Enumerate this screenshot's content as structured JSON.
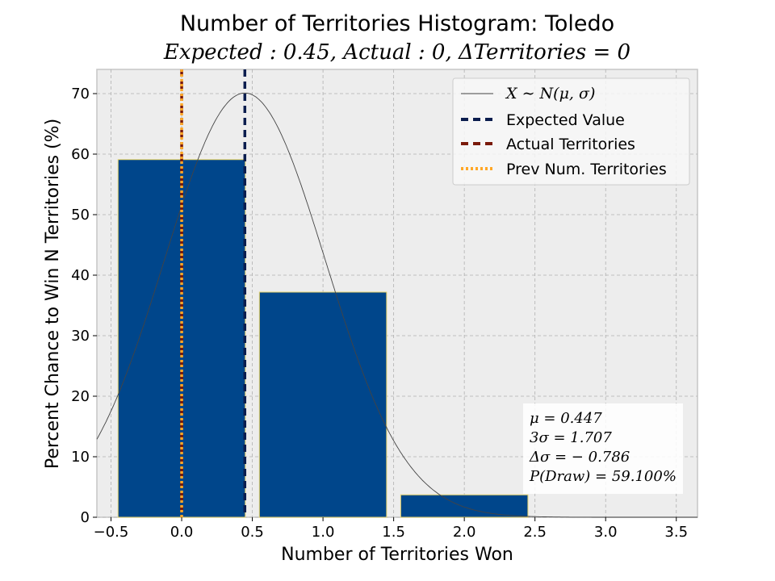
{
  "chart_data": {
    "type": "bar",
    "title": "Number of Territories Histogram: Toledo",
    "subtitle": "Expected : 0.45, Actual : 0, ΔTerritories = 0",
    "xlabel": "Number of Territories Won",
    "ylabel": "Percent Chance to Win N Territories (%)",
    "xlim": [
      -0.6,
      3.65
    ],
    "ylim": [
      0,
      74
    ],
    "xticks": [
      -0.5,
      0.0,
      0.5,
      1.0,
      1.5,
      2.0,
      2.5,
      3.0,
      3.5
    ],
    "xtick_labels": [
      "−0.5",
      "0.0",
      "0.5",
      "1.0",
      "1.5",
      "2.0",
      "2.5",
      "3.0",
      "3.5"
    ],
    "yticks": [
      0,
      10,
      20,
      30,
      40,
      50,
      60,
      70
    ],
    "ytick_labels": [
      "0",
      "10",
      "20",
      "30",
      "40",
      "50",
      "60",
      "70"
    ],
    "grid": true,
    "bar_width": 0.9,
    "bars": [
      {
        "x": 0,
        "value": 59.1
      },
      {
        "x": 1,
        "value": 37.2
      },
      {
        "x": 2,
        "value": 3.7
      }
    ],
    "normal_curve": {
      "mu": 0.447,
      "sigma": 0.569,
      "peak": 70.1
    },
    "vlines": {
      "expected": 0.447,
      "actual": 0,
      "previous": 0
    },
    "legend": {
      "placement": "top-right",
      "entries": [
        {
          "key": "normal",
          "label": "X ∼ N(μ, σ)"
        },
        {
          "key": "expected",
          "label": "Expected Value"
        },
        {
          "key": "actual",
          "label": "Actual Territories"
        },
        {
          "key": "previous",
          "label": "Prev Num. Territories"
        }
      ]
    },
    "stats_box": {
      "placement": "lower-right",
      "lines": [
        "μ = 0.447",
        "3σ = 1.707",
        "Δσ = − 0.786",
        "P(Draw) = 59.100%"
      ]
    },
    "colors": {
      "bar": "#00468b",
      "bar_edge": "#e8d36a",
      "expected": "#0b1d4e",
      "actual": "#7a1a0a",
      "previous": "#ffa726",
      "curve": "#444444",
      "plot_bg": "#ededed",
      "grid": "#b0b0b0"
    }
  }
}
